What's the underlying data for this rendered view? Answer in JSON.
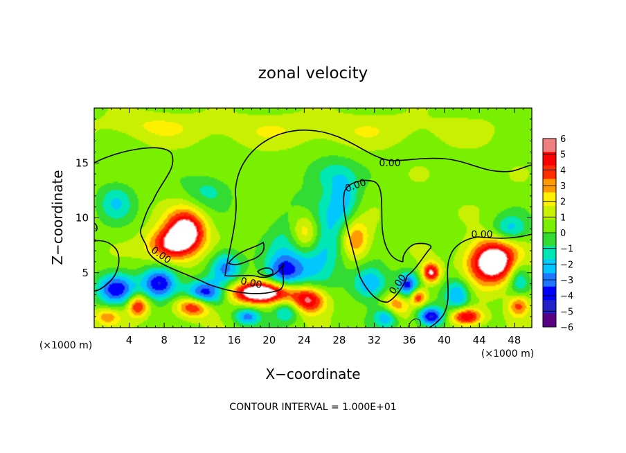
{
  "chart_data": {
    "type": "heatmap",
    "title": "zonal velocity",
    "xlabel": "X−coordinate",
    "ylabel": "Z−coordinate",
    "x_unit": "(×1000 m)",
    "y_unit": "(×1000 m)",
    "xlim": [
      0,
      50
    ],
    "ylim": [
      0,
      20
    ],
    "x_ticks": [
      4,
      8,
      12,
      16,
      20,
      24,
      28,
      32,
      36,
      40,
      44,
      48
    ],
    "y_ticks": [
      5,
      10,
      15
    ],
    "colorbar": {
      "min": -6,
      "max": 6,
      "ticks": [
        "6",
        "5",
        "4",
        "3",
        "2",
        "1",
        "0",
        "−1",
        "−2",
        "−3",
        "−4",
        "−5",
        "−6"
      ]
    },
    "contour_label": "0.00",
    "contour_note": "CONTOUR INTERVAL = 1.000E+01",
    "features": [
      {
        "x": 10.5,
        "y": 8.8,
        "value": 7,
        "sx": 2.2,
        "sy": 1.9
      },
      {
        "x": 8.5,
        "y": 7.5,
        "value": 5,
        "sx": 2.5,
        "sy": 1.5
      },
      {
        "x": 11.5,
        "y": 2.0,
        "value": 6,
        "sx": 2.0,
        "sy": 1.0
      },
      {
        "x": 19.0,
        "y": 3.2,
        "value": 8,
        "sx": 3.5,
        "sy": 1.0
      },
      {
        "x": 24.5,
        "y": 2.5,
        "value": 6,
        "sx": 2.0,
        "sy": 1.2
      },
      {
        "x": 24.2,
        "y": 8.5,
        "value": 8,
        "sx": 2.0,
        "sy": 2.2
      },
      {
        "x": 29.8,
        "y": 8.0,
        "value": 4,
        "sx": 1.6,
        "sy": 1.8
      },
      {
        "x": 34.5,
        "y": 2.0,
        "value": 4,
        "sx": 1.5,
        "sy": 1.2
      },
      {
        "x": 38.5,
        "y": 5.0,
        "value": 6,
        "sx": 1.0,
        "sy": 0.9
      },
      {
        "x": 37.0,
        "y": 2.8,
        "value": 5,
        "sx": 1.0,
        "sy": 0.8
      },
      {
        "x": 45.5,
        "y": 6.0,
        "value": 8,
        "sx": 2.8,
        "sy": 2.0
      },
      {
        "x": 42.5,
        "y": 1.0,
        "value": 6,
        "sx": 1.8,
        "sy": 0.8
      },
      {
        "x": 48.5,
        "y": 2.0,
        "value": 4,
        "sx": 1.2,
        "sy": 1.0
      },
      {
        "x": 5.0,
        "y": 2.0,
        "value": 5,
        "sx": 1.2,
        "sy": 1.0
      },
      {
        "x": 1.5,
        "y": 1.0,
        "value": 3,
        "sx": 1.5,
        "sy": 0.8
      },
      {
        "x": 24.5,
        "y": 7.8,
        "value": -7,
        "sx": 3.2,
        "sy": 3.2
      },
      {
        "x": 2.5,
        "y": 3.5,
        "value": -5,
        "sx": 2.2,
        "sy": 1.4
      },
      {
        "x": 7.5,
        "y": 4.0,
        "value": -6,
        "sx": 2.0,
        "sy": 1.5
      },
      {
        "x": 12.5,
        "y": 3.0,
        "value": -6,
        "sx": 2.2,
        "sy": 1.2
      },
      {
        "x": 15.0,
        "y": 5.5,
        "value": -4,
        "sx": 1.8,
        "sy": 1.5
      },
      {
        "x": 21.5,
        "y": 5.0,
        "value": -4,
        "sx": 2.0,
        "sy": 1.5
      },
      {
        "x": 31.5,
        "y": 4.0,
        "value": -4,
        "sx": 2.0,
        "sy": 1.5
      },
      {
        "x": 33.5,
        "y": 1.0,
        "value": -4,
        "sx": 1.5,
        "sy": 1.0
      },
      {
        "x": 35.8,
        "y": 3.8,
        "value": -5,
        "sx": 1.2,
        "sy": 1.2
      },
      {
        "x": 38.5,
        "y": 1.0,
        "value": -6,
        "sx": 1.5,
        "sy": 0.9
      },
      {
        "x": 41.5,
        "y": 3.0,
        "value": -4,
        "sx": 1.5,
        "sy": 1.5
      },
      {
        "x": 47.5,
        "y": 9.0,
        "value": -3,
        "sx": 2.0,
        "sy": 1.2
      },
      {
        "x": 2.5,
        "y": 11.5,
        "value": -2.5,
        "sx": 2.0,
        "sy": 1.8
      },
      {
        "x": 28.5,
        "y": 11.8,
        "value": -3,
        "sx": 1.8,
        "sy": 2.5
      },
      {
        "x": 26.5,
        "y": 14.0,
        "value": -2,
        "sx": 2.5,
        "sy": 1.5
      },
      {
        "x": 13.0,
        "y": 12.5,
        "value": -2,
        "sx": 2.5,
        "sy": 1.5
      },
      {
        "x": 48.5,
        "y": 4.5,
        "value": -3,
        "sx": 1.2,
        "sy": 1.5
      },
      {
        "x": 17.5,
        "y": 1.0,
        "value": -4,
        "sx": 1.5,
        "sy": 0.8
      },
      {
        "x": 22.0,
        "y": 1.5,
        "value": -3,
        "sx": 1.5,
        "sy": 1.0
      },
      {
        "x": 25.0,
        "y": 18.0,
        "value": 1.2,
        "sx": 20.0,
        "sy": 1.5
      },
      {
        "x": 6.0,
        "y": 18.5,
        "value": 1.0,
        "sx": 5.0,
        "sy": 1.2
      }
    ]
  }
}
